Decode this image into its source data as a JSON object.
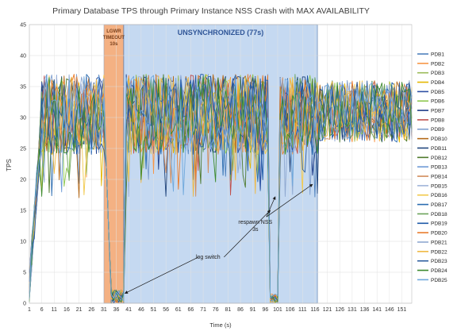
{
  "chart_data": {
    "type": "line",
    "title": "Primary Database TPS through Primary Instance NSS Crash with MAX AVAILABILITY",
    "xlabel": "Time (s)",
    "ylabel": "TPS",
    "xlim": [
      1,
      155
    ],
    "ylim": [
      0,
      45
    ],
    "y_ticks": [
      0,
      5,
      10,
      15,
      20,
      25,
      30,
      35,
      40,
      45
    ],
    "x_ticks": [
      1,
      6,
      11,
      16,
      21,
      26,
      31,
      36,
      41,
      46,
      51,
      56,
      61,
      66,
      71,
      76,
      81,
      86,
      91,
      96,
      101,
      106,
      111,
      116,
      121,
      126,
      131,
      136,
      141,
      146,
      151
    ],
    "grid": true,
    "legend_position": "right",
    "regions": [
      {
        "label_lines": [
          "LGWR",
          "TIMEOUT",
          "10s"
        ],
        "x_start": 31,
        "x_end": 39,
        "color": "#f4b183"
      },
      {
        "label_lines": [
          "UNSYNCHRONIZED (77s)"
        ],
        "x_start": 39,
        "x_end": 117,
        "color": "#c5d9f1"
      }
    ],
    "annotations": [
      {
        "text_lines": [
          "respawn NSS",
          "3s"
        ],
        "text_x": 92,
        "text_y": 12.8,
        "arrows": [
          [
            100,
            17.2
          ],
          [
            115,
            19.2
          ]
        ]
      },
      {
        "text_lines": [
          "log switch"
        ],
        "text_x": 73,
        "text_y": 7.2,
        "arrows": [
          [
            98,
            15
          ],
          [
            39.5,
            1.6
          ]
        ]
      }
    ],
    "series": [
      {
        "name": "PDB1",
        "color": "#4f81bd"
      },
      {
        "name": "PDB2",
        "color": "#f79646"
      },
      {
        "name": "PDB3",
        "color": "#9bbb59"
      },
      {
        "name": "PDB4",
        "color": "#e5b700"
      },
      {
        "name": "PDB5",
        "color": "#2e4fa3"
      },
      {
        "name": "PDB6",
        "color": "#8cc64d"
      },
      {
        "name": "PDB7",
        "color": "#1f3c88"
      },
      {
        "name": "PDB8",
        "color": "#c0504d"
      },
      {
        "name": "PDB9",
        "color": "#7f9fcf"
      },
      {
        "name": "PDB10",
        "color": "#b46a1a"
      },
      {
        "name": "PDB11",
        "color": "#22467d"
      },
      {
        "name": "PDB12",
        "color": "#4e7a2c"
      },
      {
        "name": "PDB13",
        "color": "#6d9ad6"
      },
      {
        "name": "PDB14",
        "color": "#d28c5b"
      },
      {
        "name": "PDB15",
        "color": "#a0b4d8"
      },
      {
        "name": "PDB16",
        "color": "#f2c94c"
      },
      {
        "name": "PDB17",
        "color": "#2b6cb0"
      },
      {
        "name": "PDB18",
        "color": "#6ba35a"
      },
      {
        "name": "PDB19",
        "color": "#1e5aa8"
      },
      {
        "name": "PDB20",
        "color": "#e97b2b"
      },
      {
        "name": "PDB21",
        "color": "#8fa8d0"
      },
      {
        "name": "PDB22",
        "color": "#f0b841"
      },
      {
        "name": "PDB23",
        "color": "#2c5d9e"
      },
      {
        "name": "PDB24",
        "color": "#3c8a2e"
      },
      {
        "name": "PDB25",
        "color": "#6fa8dc"
      }
    ]
  }
}
